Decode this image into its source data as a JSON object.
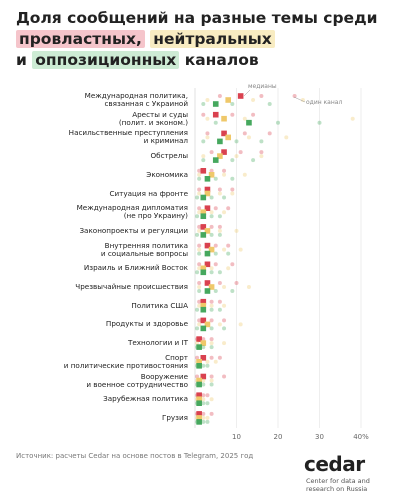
{
  "chart_data": {
    "type": "dot-strip",
    "title_parts": [
      "Доля сообщений на разные темы среди",
      "провластных,",
      "нейтральных",
      "и",
      "оппозиционных",
      "каналов"
    ],
    "categories": [
      "Международная политика,\nсвязанная с Украиной",
      "Аресты и суды\n(полит. и эконом.)",
      "Насильственные преступления\nи криминал",
      "Обстрелы",
      "Экономика",
      "Ситуация на фронте",
      "Международная дипломатия\n(не про Украину)",
      "Законопроекты и регуляции",
      "Внутренняя политика\nи социальные вопросы",
      "Израиль и Ближний Восток",
      "Чрезвычайные происшествия",
      "Политика США",
      "Продукты и здоровье",
      "Технологии и IT",
      "Спорт\nи политические противостояния",
      "Вооружение\nи военное сотрудничество",
      "Зарубежная политика",
      "Грузия"
    ],
    "series": [
      {
        "color": "#d9414f",
        "highlight": "#f5c5cb",
        "values": [
          11,
          5,
          7,
          7,
          2,
          3,
          3,
          2,
          3,
          3,
          3,
          2,
          2,
          1,
          2,
          2,
          1,
          1
        ],
        "channels": [
          [
            6,
            16,
            24
          ],
          [
            2,
            9,
            14
          ],
          [
            3,
            12,
            18
          ],
          [
            4,
            11,
            16
          ],
          [
            1,
            4,
            7
          ],
          [
            1,
            6,
            9
          ],
          [
            1,
            5,
            8
          ],
          [
            1,
            4,
            6
          ],
          [
            1,
            5,
            8
          ],
          [
            1,
            5,
            9
          ],
          [
            1,
            6,
            10
          ],
          [
            1,
            4,
            6
          ],
          [
            1,
            4,
            7
          ],
          [
            0.5,
            2,
            4
          ],
          [
            0.5,
            4,
            6
          ],
          [
            0.5,
            4,
            7
          ],
          [
            0.5,
            2,
            3
          ],
          [
            0.5,
            2,
            4
          ]
        ]
      },
      {
        "color": "#efc86a",
        "highlight": "#f8ecc2",
        "values": [
          8,
          7,
          8,
          6,
          4,
          3,
          2,
          3,
          4,
          2,
          4,
          2,
          3,
          2,
          1,
          1,
          1,
          1
        ],
        "channels": [
          [
            3,
            14,
            26
          ],
          [
            3,
            12,
            38
          ],
          [
            3,
            13,
            22
          ],
          [
            2,
            10,
            16
          ],
          [
            1,
            7,
            12
          ],
          [
            1,
            6,
            9
          ],
          [
            1,
            4,
            7
          ],
          [
            1,
            6,
            10
          ],
          [
            1,
            7,
            11
          ],
          [
            1,
            4,
            8
          ],
          [
            1,
            7,
            13
          ],
          [
            1,
            4,
            7
          ],
          [
            1,
            6,
            11
          ],
          [
            0.5,
            4,
            7
          ],
          [
            0.5,
            3,
            5
          ],
          [
            0.5,
            2,
            4
          ],
          [
            0.5,
            2,
            4
          ],
          [
            0.5,
            2,
            3
          ]
        ]
      },
      {
        "color": "#46a85e",
        "highlight": "#cdebd4",
        "values": [
          5,
          13,
          6,
          5,
          3,
          2,
          2,
          2,
          3,
          2,
          3,
          2,
          2,
          1,
          1,
          1,
          1,
          1
        ],
        "channels": [
          [
            2,
            9,
            18
          ],
          [
            5,
            20,
            30
          ],
          [
            2,
            10,
            16
          ],
          [
            2,
            9,
            14
          ],
          [
            1,
            5,
            9
          ],
          [
            0.5,
            4,
            7
          ],
          [
            0.5,
            4,
            6
          ],
          [
            0.5,
            4,
            6
          ],
          [
            1,
            5,
            8
          ],
          [
            0.5,
            4,
            6
          ],
          [
            1,
            5,
            9
          ],
          [
            0.5,
            4,
            6
          ],
          [
            0.5,
            4,
            7
          ],
          [
            0.5,
            2,
            4
          ],
          [
            0.5,
            2,
            3
          ],
          [
            0.5,
            2,
            4
          ],
          [
            0.5,
            2,
            3
          ],
          [
            0.5,
            2,
            3
          ]
        ]
      }
    ],
    "xlim": [
      0,
      40
    ],
    "xticks": [
      10,
      20,
      30,
      {
        "value": 40,
        "label": "40%"
      }
    ],
    "grid": true,
    "annotations": [
      "медианы",
      "один канал"
    ],
    "source": "Источник: расчеты Cedar на основе постов в Telegram, 2025 год",
    "logo": "cedar",
    "logo_subtitle": "Center for data and\nresearch on Russia"
  }
}
